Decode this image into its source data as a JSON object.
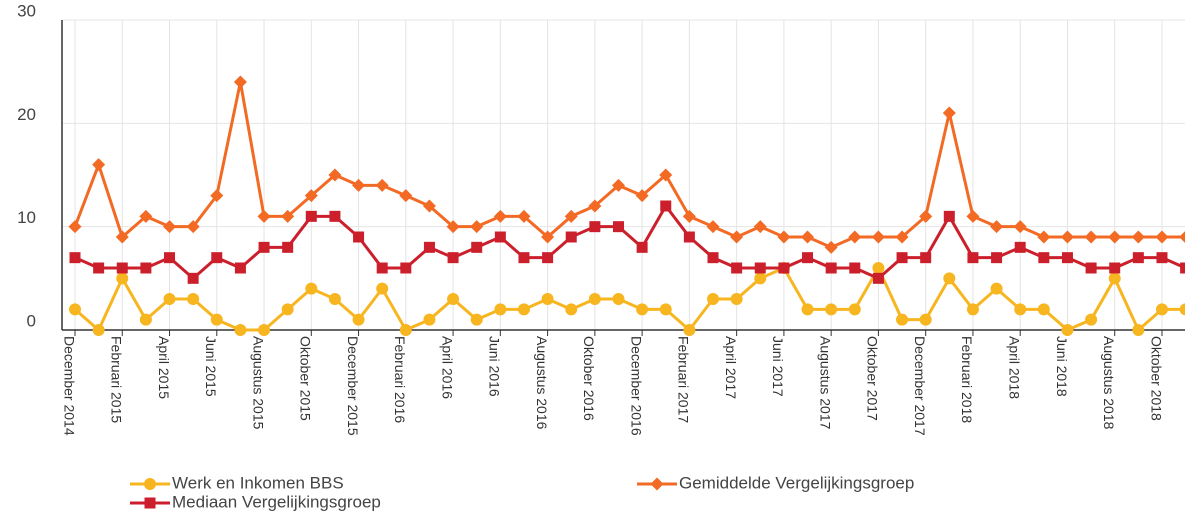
{
  "chart_data": {
    "type": "line",
    "categories": [
      "December 2014",
      null,
      "Februari 2015",
      null,
      "April 2015",
      null,
      "Juni 2015",
      null,
      "Augustus 2015",
      null,
      "Oktober 2015",
      null,
      "December 2015",
      null,
      "Februari 2016",
      null,
      "April 2016",
      null,
      "Juni 2016",
      null,
      "Augustus 2016",
      null,
      "Oktober 2016",
      null,
      "December 2016",
      null,
      "Februari 2017",
      null,
      "April 2017",
      null,
      "Juni 2017",
      null,
      "Augustus 2017",
      null,
      "Oktober 2017",
      null,
      "December 2017",
      null,
      "Februari 2018",
      null,
      "April 2018",
      null,
      "Juni 2018",
      null,
      "Augustus 2018",
      null,
      "Oktober 2018",
      null
    ],
    "series": [
      {
        "name": "Werk en Inkomen BBS",
        "color": "#f7b520",
        "marker": "circle",
        "values": [
          2,
          0,
          5,
          1,
          3,
          3,
          1,
          0,
          0,
          2,
          4,
          3,
          1,
          4,
          0,
          1,
          3,
          1,
          2,
          2,
          3,
          2,
          3,
          3,
          2,
          2,
          0,
          3,
          3,
          5,
          6,
          2,
          2,
          2,
          6,
          1,
          1,
          5,
          2,
          4,
          2,
          2,
          0,
          1,
          5,
          0,
          2,
          2
        ]
      },
      {
        "name": "Gemiddelde Vergelijkingsgroep",
        "color": "#f26a24",
        "marker": "diamond",
        "values": [
          10,
          16,
          9,
          11,
          10,
          10,
          13,
          24,
          11,
          11,
          13,
          15,
          14,
          14,
          13,
          12,
          10,
          10,
          11,
          11,
          9,
          11,
          12,
          14,
          13,
          15,
          11,
          10,
          9,
          10,
          9,
          9,
          8,
          9,
          9,
          9,
          11,
          21,
          11,
          10,
          10,
          9,
          9,
          9,
          9,
          9,
          9,
          9
        ]
      },
      {
        "name": "Mediaan Vergelijkingsgroep",
        "color": "#cc1f2c",
        "marker": "square",
        "values": [
          7,
          6,
          6,
          6,
          7,
          5,
          7,
          6,
          8,
          8,
          11,
          11,
          9,
          6,
          6,
          8,
          7,
          8,
          9,
          7,
          7,
          9,
          10,
          10,
          8,
          12,
          9,
          7,
          6,
          6,
          6,
          7,
          6,
          6,
          5,
          7,
          7,
          11,
          7,
          7,
          8,
          7,
          7,
          6,
          6,
          7,
          7,
          6
        ]
      }
    ],
    "ylim": [
      0,
      30
    ],
    "yticks": [
      0,
      10,
      20,
      30
    ],
    "grid": true
  }
}
